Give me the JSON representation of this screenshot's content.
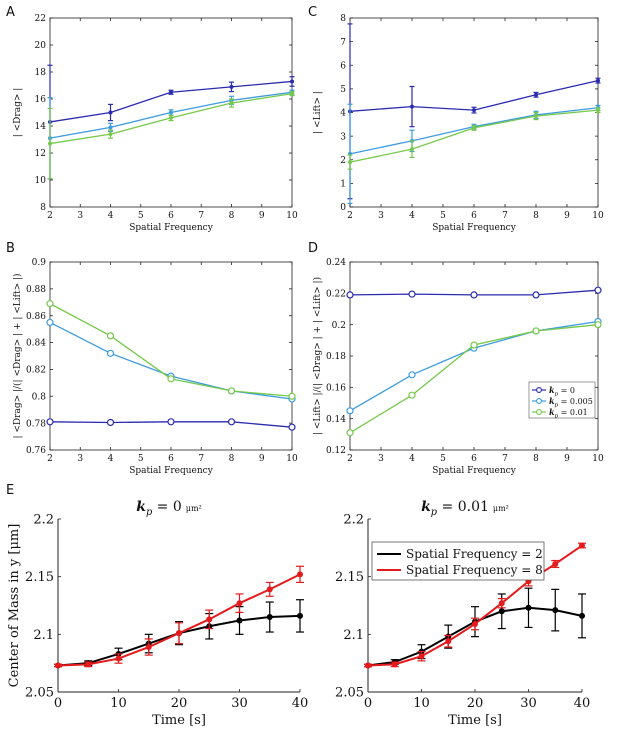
{
  "panel_labels": [
    "A",
    "B",
    "C",
    "D",
    "E"
  ],
  "colors": {
    "k0": "#2b2bb0",
    "k005": "#3d9be0",
    "k01": "#76c94a",
    "black": "#000000",
    "red": "#e41a1c",
    "axis": "#222222",
    "grid": "#d0d0d0"
  },
  "legend_top": [
    "k_p = 0",
    "k_p = 0.005",
    "k_p = 0.01"
  ],
  "legend_bottom": [
    "Spatial Frequency = 2",
    "Spatial Frequency = 8"
  ],
  "titles_bottom": {
    "left": "k_p = 0 μm²",
    "right": "k_p = 0.01 μm²"
  },
  "chart_data": [
    {
      "id": "A",
      "type": "line",
      "title": "",
      "xlabel": "Spatial Frequency",
      "ylabel": "| <Drag> |",
      "xlim": [
        2,
        10
      ],
      "ylim": [
        8,
        22
      ],
      "xticks": [
        2,
        3,
        4,
        5,
        6,
        7,
        8,
        9,
        10
      ],
      "yticks": [
        8,
        10,
        12,
        14,
        16,
        18,
        20,
        22
      ],
      "x": [
        2,
        4,
        6,
        8,
        10
      ],
      "series": [
        {
          "name": "k_p = 0",
          "values": [
            14.3,
            15.0,
            16.5,
            16.9,
            17.3
          ],
          "err": [
            4.2,
            0.6,
            0.15,
            0.35,
            0.35
          ]
        },
        {
          "name": "k_p = 0.005",
          "values": [
            13.1,
            13.9,
            15.0,
            15.9,
            16.5
          ],
          "err": [
            3.0,
            0.3,
            0.2,
            0.3,
            0.15
          ]
        },
        {
          "name": "k_p = 0.01",
          "values": [
            12.7,
            13.4,
            14.6,
            15.7,
            16.4
          ],
          "err": [
            2.6,
            0.3,
            0.2,
            0.3,
            0.15
          ]
        }
      ]
    },
    {
      "id": "C",
      "type": "line",
      "title": "",
      "xlabel": "Spatial Frequency",
      "ylabel": "| <Lift> |",
      "xlim": [
        2,
        10
      ],
      "ylim": [
        0,
        8
      ],
      "xticks": [
        2,
        3,
        4,
        5,
        6,
        7,
        8,
        9,
        10
      ],
      "yticks": [
        0,
        1,
        2,
        3,
        4,
        5,
        6,
        7,
        8
      ],
      "x": [
        2,
        4,
        6,
        8,
        10
      ],
      "series": [
        {
          "name": "k_p = 0",
          "values": [
            4.05,
            4.25,
            4.1,
            4.75,
            5.35
          ],
          "err": [
            3.7,
            0.85,
            0.12,
            0.1,
            0.1
          ]
        },
        {
          "name": "k_p = 0.005",
          "values": [
            2.25,
            2.8,
            3.4,
            3.9,
            4.2
          ],
          "err": [
            2.1,
            0.45,
            0.1,
            0.15,
            0.1
          ]
        },
        {
          "name": "k_p = 0.01",
          "values": [
            1.9,
            2.45,
            3.35,
            3.85,
            4.1
          ],
          "err": [
            0.3,
            0.35,
            0.1,
            0.15,
            0.1
          ]
        }
      ]
    },
    {
      "id": "B",
      "type": "line",
      "title": "",
      "xlabel": "Spatial Frequency",
      "ylabel": "| <Drag> |/(| <Drag> | + | <Lift> |)",
      "xlim": [
        2,
        10
      ],
      "ylim": [
        0.76,
        0.9
      ],
      "xticks": [
        2,
        3,
        4,
        5,
        6,
        7,
        8,
        9,
        10
      ],
      "yticks": [
        0.76,
        0.78,
        0.8,
        0.82,
        0.84,
        0.86,
        0.88,
        0.9
      ],
      "x": [
        2,
        4,
        6,
        8,
        10
      ],
      "series": [
        {
          "name": "k_p = 0",
          "values": [
            0.781,
            0.7805,
            0.781,
            0.781,
            0.777
          ]
        },
        {
          "name": "k_p = 0.005",
          "values": [
            0.855,
            0.832,
            0.815,
            0.804,
            0.798
          ]
        },
        {
          "name": "k_p = 0.01",
          "values": [
            0.869,
            0.845,
            0.813,
            0.804,
            0.8
          ]
        }
      ]
    },
    {
      "id": "D",
      "type": "line",
      "title": "",
      "xlabel": "Spatial Frequency",
      "ylabel": "| <Lift> |/(| <Drag> | + | <Lift> |)",
      "xlim": [
        2,
        10
      ],
      "ylim": [
        0.12,
        0.24
      ],
      "xticks": [
        2,
        3,
        4,
        5,
        6,
        7,
        8,
        9,
        10
      ],
      "yticks": [
        0.12,
        0.14,
        0.16,
        0.18,
        0.2,
        0.22,
        0.24
      ],
      "x": [
        2,
        4,
        6,
        8,
        10
      ],
      "legend": "bottom-right",
      "series": [
        {
          "name": "k_p = 0",
          "values": [
            0.219,
            0.2195,
            0.219,
            0.219,
            0.222
          ]
        },
        {
          "name": "k_p = 0.005",
          "values": [
            0.145,
            0.168,
            0.185,
            0.196,
            0.202
          ]
        },
        {
          "name": "k_p = 0.01",
          "values": [
            0.131,
            0.155,
            0.187,
            0.196,
            0.2
          ]
        }
      ]
    },
    {
      "id": "E1",
      "type": "line",
      "title": "k_p = 0 μm²",
      "xlabel": "Time [s]",
      "ylabel": "Center of Mass in y [μm]",
      "xlim": [
        0,
        40
      ],
      "ylim": [
        2.05,
        2.2
      ],
      "xticks": [
        0,
        10,
        20,
        30,
        40
      ],
      "yticks": [
        2.05,
        2.1,
        2.15,
        2.2
      ],
      "x": [
        0,
        5,
        10,
        15,
        20,
        25,
        30,
        35,
        40
      ],
      "series": [
        {
          "name": "Spatial Frequency = 2",
          "values": [
            2.073,
            2.075,
            2.083,
            2.092,
            2.101,
            2.107,
            2.112,
            2.115,
            2.116
          ],
          "err": [
            0.001,
            0.002,
            0.005,
            0.008,
            0.01,
            0.011,
            0.012,
            0.013,
            0.014
          ]
        },
        {
          "name": "Spatial Frequency = 8",
          "values": [
            2.073,
            2.074,
            2.079,
            2.089,
            2.101,
            2.113,
            2.127,
            2.139,
            2.152
          ],
          "err": [
            0.001,
            0.002,
            0.004,
            0.007,
            0.009,
            0.008,
            0.008,
            0.006,
            0.007
          ]
        }
      ]
    },
    {
      "id": "E2",
      "type": "line",
      "title": "k_p = 0.01 μm²",
      "xlabel": "Time [s]",
      "ylabel": "",
      "xlim": [
        0,
        40
      ],
      "ylim": [
        2.05,
        2.2
      ],
      "xticks": [
        0,
        10,
        20,
        30,
        40
      ],
      "yticks": [
        2.05,
        2.1,
        2.15,
        2.2
      ],
      "x": [
        0,
        5,
        10,
        15,
        20,
        25,
        30,
        35,
        40
      ],
      "legend": "top-left",
      "series": [
        {
          "name": "Spatial Frequency = 2",
          "values": [
            2.073,
            2.076,
            2.085,
            2.098,
            2.111,
            2.12,
            2.123,
            2.121,
            2.116
          ],
          "err": [
            0.001,
            0.002,
            0.006,
            0.01,
            0.013,
            0.015,
            0.017,
            0.018,
            0.019
          ]
        },
        {
          "name": "Spatial Frequency = 8",
          "values": [
            2.073,
            2.074,
            2.081,
            2.094,
            2.109,
            2.127,
            2.146,
            2.161,
            2.177
          ],
          "err": [
            0.001,
            0.002,
            0.004,
            0.005,
            0.005,
            0.004,
            0.004,
            0.003,
            0.002
          ]
        }
      ]
    }
  ]
}
